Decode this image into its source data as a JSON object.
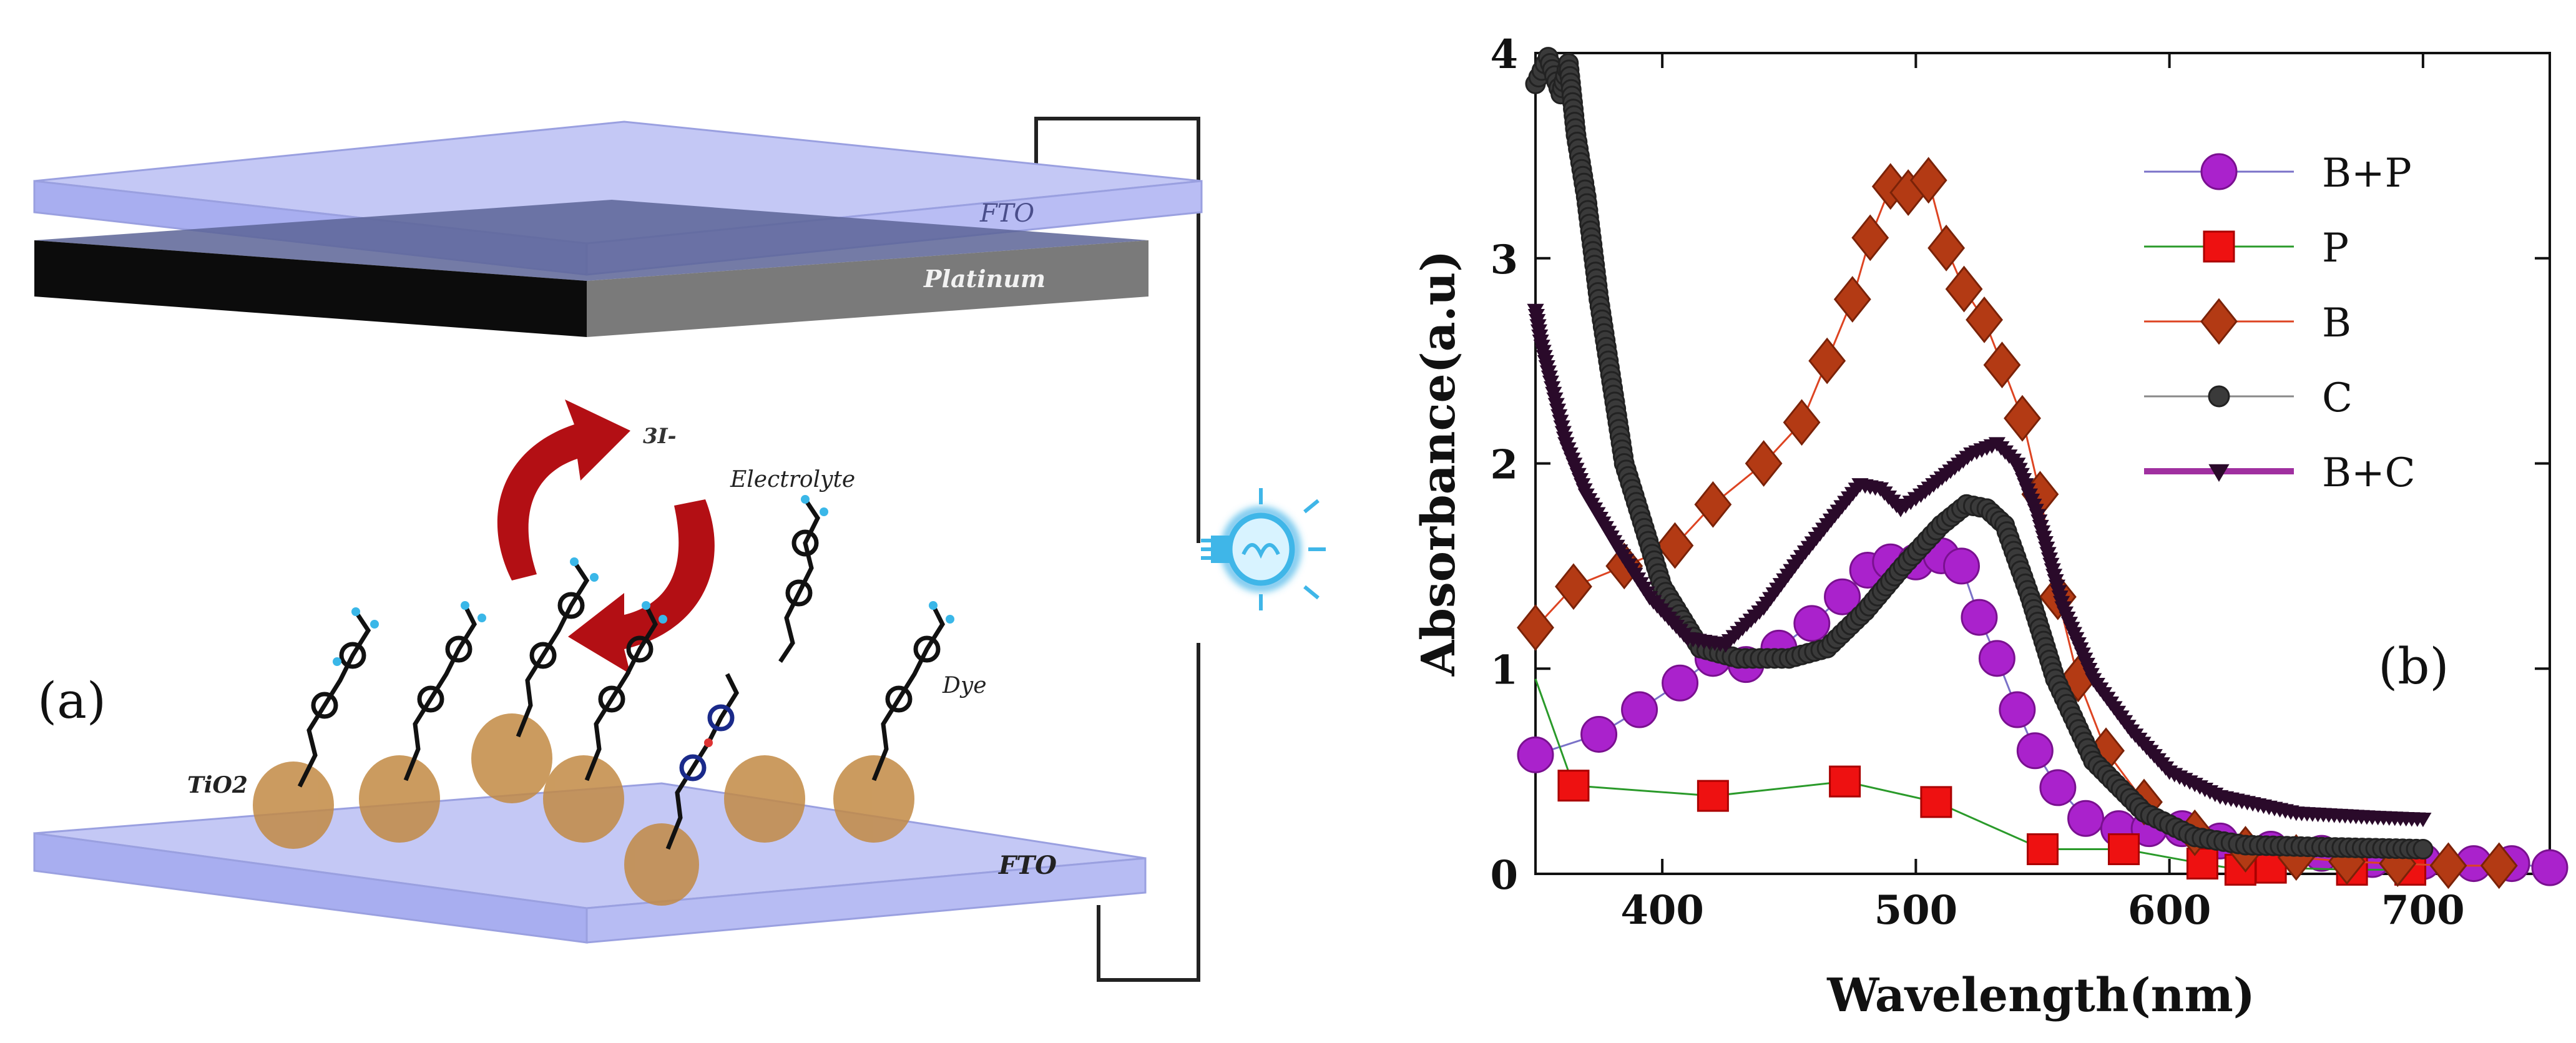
{
  "panel_a": {
    "label": "(a)",
    "top_fto_label": "FTO",
    "platinum_label": "Platinum",
    "electrolyte_label": "Electrolyte",
    "iodide_label": "3I-",
    "dye_label": "Dye",
    "tio2_label": "TiO2",
    "bottom_fto_label": "FTO",
    "colors": {
      "glass": "#c9cdf6",
      "platinum": "#6f6f6f",
      "tio2": "#c28a44",
      "arrow": "#b30f14",
      "bulb": "#3fb6e8",
      "wire": "#222222"
    }
  },
  "panel_b": {
    "label": "(b)"
  },
  "chart_data": {
    "type": "scatter",
    "title": "",
    "xlabel": "Wavelength(nm)",
    "ylabel": "Absorbance(a.u)",
    "xlim": [
      350,
      750
    ],
    "ylim": [
      0,
      4
    ],
    "xticks": [
      400,
      500,
      600,
      700
    ],
    "yticks": [
      0,
      1,
      2,
      3,
      4
    ],
    "grid": false,
    "legend_position": "top-right",
    "series": [
      {
        "name": "B+P",
        "marker": "circle",
        "color": "#a020c0",
        "x": [
          350,
          375,
          391,
          407,
          420,
          433,
          446,
          459,
          471,
          481,
          490,
          500,
          510,
          518,
          525,
          532,
          540,
          547,
          556,
          567,
          580,
          592,
          605,
          620,
          640,
          660,
          680,
          700,
          720,
          735,
          750
        ],
        "y": [
          0.58,
          0.68,
          0.8,
          0.93,
          1.05,
          1.02,
          1.1,
          1.22,
          1.35,
          1.48,
          1.52,
          1.52,
          1.55,
          1.5,
          1.25,
          1.05,
          0.8,
          0.6,
          0.42,
          0.27,
          0.22,
          0.22,
          0.22,
          0.16,
          0.12,
          0.1,
          0.07,
          0.06,
          0.05,
          0.05,
          0.03
        ]
      },
      {
        "name": "P",
        "marker": "square",
        "color": "#ee1111",
        "x": [
          350,
          365,
          420,
          472,
          508,
          550,
          582,
          613,
          628,
          640,
          672,
          695
        ],
        "y": [
          0.95,
          0.43,
          0.38,
          0.45,
          0.35,
          0.12,
          0.12,
          0.05,
          0.02,
          0.03,
          0.02,
          0.02
        ],
        "mark_x": [
          365,
          420,
          472,
          508,
          550,
          582,
          613,
          628,
          640,
          672,
          695
        ]
      },
      {
        "name": "B",
        "marker": "diamond",
        "color": "#aa3311",
        "x": [
          350,
          365,
          385,
          405,
          420,
          440,
          455,
          465,
          475,
          482,
          490,
          497,
          505,
          512,
          519,
          527,
          534,
          542,
          549,
          556,
          564,
          575,
          590,
          610,
          630,
          650,
          670,
          690,
          710,
          730
        ],
        "y": [
          1.2,
          1.4,
          1.5,
          1.6,
          1.8,
          2.0,
          2.2,
          2.5,
          2.8,
          3.1,
          3.35,
          3.32,
          3.38,
          3.05,
          2.85,
          2.7,
          2.48,
          2.22,
          1.85,
          1.35,
          0.95,
          0.6,
          0.35,
          0.2,
          0.12,
          0.08,
          0.06,
          0.05,
          0.04,
          0.04
        ]
      },
      {
        "name": "C",
        "marker": "dot",
        "color": "#3a3a3a",
        "x": [
          350,
          355,
          360,
          363,
          366,
          370,
          375,
          385,
          400,
          415,
          430,
          450,
          465,
          480,
          495,
          510,
          520,
          528,
          535,
          545,
          555,
          570,
          590,
          610,
          630,
          660,
          700
        ],
        "y": [
          3.85,
          3.98,
          3.8,
          3.95,
          3.6,
          3.3,
          2.8,
          2.0,
          1.4,
          1.1,
          1.05,
          1.05,
          1.1,
          1.28,
          1.5,
          1.7,
          1.8,
          1.78,
          1.7,
          1.35,
          0.95,
          0.55,
          0.3,
          0.18,
          0.14,
          0.13,
          0.12
        ]
      },
      {
        "name": "B+C",
        "marker": "triangle-down",
        "color": "#6a0a6a",
        "x": [
          350,
          352,
          356,
          362,
          370,
          382,
          395,
          410,
          425,
          440,
          455,
          468,
          478,
          486,
          494,
          502,
          512,
          522,
          532,
          540,
          548,
          558,
          570,
          585,
          600,
          620,
          650,
          680,
          700
        ],
        "y": [
          2.75,
          2.6,
          2.4,
          2.1,
          1.85,
          1.6,
          1.35,
          1.15,
          1.12,
          1.3,
          1.55,
          1.75,
          1.9,
          1.88,
          1.78,
          1.85,
          1.95,
          2.05,
          2.1,
          2.0,
          1.75,
          1.3,
          0.95,
          0.7,
          0.5,
          0.38,
          0.3,
          0.28,
          0.27
        ]
      }
    ]
  }
}
